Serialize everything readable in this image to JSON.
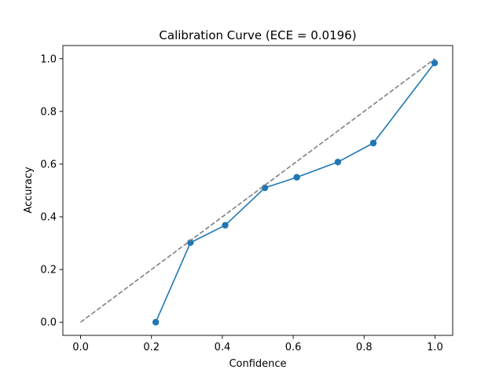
{
  "chart_data": {
    "type": "line",
    "title": "Calibration Curve (ECE = 0.0196)",
    "xlabel": "Confidence",
    "ylabel": "Accuracy",
    "xlim": [
      -0.05,
      1.05
    ],
    "ylim": [
      -0.05,
      1.05
    ],
    "xticks": [
      0.0,
      0.2,
      0.4,
      0.6,
      0.8,
      1.0
    ],
    "yticks": [
      0.0,
      0.2,
      0.4,
      0.6,
      0.8,
      1.0
    ],
    "xtick_labels": [
      "0.0",
      "0.2",
      "0.4",
      "0.6",
      "0.8",
      "1.0"
    ],
    "ytick_labels": [
      "0.0",
      "0.2",
      "0.4",
      "0.6",
      "0.8",
      "1.0"
    ],
    "grid": false,
    "series": [
      {
        "style": "solid-line-with-circle-markers",
        "color": "#1f77b4",
        "x": [
          0.212,
          0.31,
          0.408,
          0.52,
          0.61,
          0.726,
          0.826,
          0.999
        ],
        "y": [
          0.0,
          0.302,
          0.368,
          0.51,
          0.55,
          0.608,
          0.68,
          0.984
        ]
      },
      {
        "style": "dashed-reference",
        "color": "#808080",
        "x": [
          0.0,
          1.0
        ],
        "y": [
          0.0,
          1.0
        ]
      }
    ]
  }
}
